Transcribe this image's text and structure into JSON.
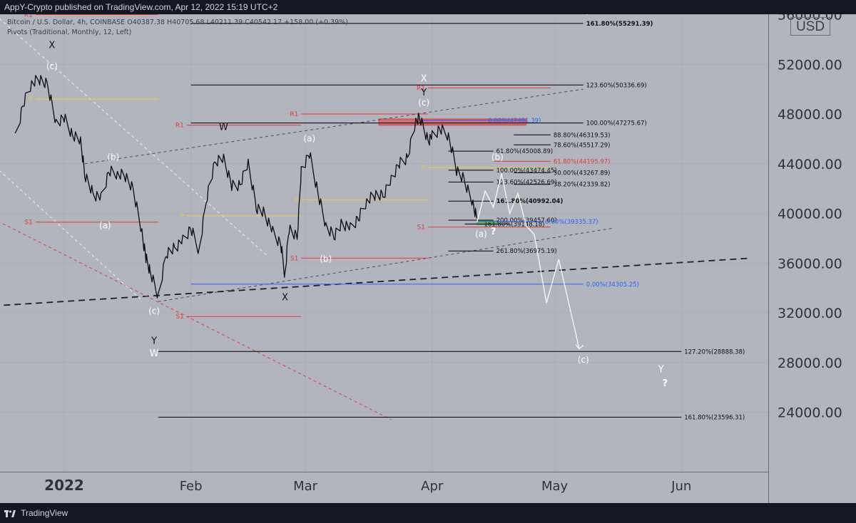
{
  "header": {
    "publish_text": "AppY-Crypto published on TradingView.com, Apr 12, 2022 15:19 UTC+2"
  },
  "legend": {
    "line1": "Bitcoin / U.S. Dollar, 4h, COINBASE  O40387.38  H40705.68  L40211.39  C40542.17  +158.00 (+0.39%)",
    "line2": "Pivots (Traditional, Monthly, 12, Left)"
  },
  "currency": "USD",
  "footer": {
    "brand": "TradingView"
  },
  "chart_data": {
    "type": "line",
    "symbol": "Bitcoin / U.S. Dollar, 4h, COINBASE",
    "ylim": [
      21000,
      60000
    ],
    "y_ticks": [
      {
        "value": 56000,
        "label": "56000.00"
      },
      {
        "value": 52000,
        "label": "52000.00"
      },
      {
        "value": 48000,
        "label": "48000.00"
      },
      {
        "value": 44000,
        "label": "44000.00"
      },
      {
        "value": 40000,
        "label": "40000.00"
      },
      {
        "value": 36000,
        "label": "36000.00"
      },
      {
        "value": 32000,
        "label": "32000.00"
      },
      {
        "value": 28000,
        "label": "28000.00"
      },
      {
        "value": 24000,
        "label": "24000.00"
      }
    ],
    "x_ticks": [
      {
        "date": "2022-01-01",
        "label": "2022",
        "bold": true
      },
      {
        "date": "2022-02-01",
        "label": "Feb"
      },
      {
        "date": "2022-03-01",
        "label": "Mar"
      },
      {
        "date": "2022-04-01",
        "label": "Apr"
      },
      {
        "date": "2022-05-01",
        "label": "May"
      },
      {
        "date": "2022-06-01",
        "label": "Jun"
      }
    ],
    "price_path": [
      [
        "2021-12-20",
        46000
      ],
      [
        "2021-12-22",
        48800
      ],
      [
        "2021-12-24",
        50500
      ],
      [
        "2021-12-26",
        50800
      ],
      [
        "2021-12-28",
        50300
      ],
      [
        "2021-12-30",
        47300
      ],
      [
        "2022-01-01",
        47700
      ],
      [
        "2022-01-03",
        46300
      ],
      [
        "2022-01-05",
        45800
      ],
      [
        "2022-01-06",
        43200
      ],
      [
        "2022-01-08",
        41600
      ],
      [
        "2022-01-10",
        41200
      ],
      [
        "2022-01-12",
        43400
      ],
      [
        "2022-01-14",
        43200
      ],
      [
        "2022-01-16",
        43000
      ],
      [
        "2022-01-18",
        41800
      ],
      [
        "2022-01-20",
        38500
      ],
      [
        "2022-01-21",
        36400
      ],
      [
        "2022-01-22",
        35400
      ],
      [
        "2022-01-24",
        33200
      ],
      [
        "2022-01-26",
        36800
      ],
      [
        "2022-01-28",
        37200
      ],
      [
        "2022-01-30",
        37800
      ],
      [
        "2022-02-01",
        38800
      ],
      [
        "2022-02-03",
        37000
      ],
      [
        "2022-02-05",
        41500
      ],
      [
        "2022-02-07",
        44200
      ],
      [
        "2022-02-09",
        44500
      ],
      [
        "2022-02-11",
        42200
      ],
      [
        "2022-02-13",
        42300
      ],
      [
        "2022-02-15",
        44000
      ],
      [
        "2022-02-17",
        40500
      ],
      [
        "2022-02-19",
        40000
      ],
      [
        "2022-02-21",
        38500
      ],
      [
        "2022-02-23",
        37500
      ],
      [
        "2022-02-24",
        35000
      ],
      [
        "2022-02-25",
        38800
      ],
      [
        "2022-02-27",
        38000
      ],
      [
        "2022-02-28",
        43500
      ],
      [
        "2022-03-02",
        44800
      ],
      [
        "2022-03-04",
        41800
      ],
      [
        "2022-03-06",
        38900
      ],
      [
        "2022-03-08",
        38200
      ],
      [
        "2022-03-10",
        39200
      ],
      [
        "2022-03-12",
        38800
      ],
      [
        "2022-03-14",
        39600
      ],
      [
        "2022-03-16",
        41000
      ],
      [
        "2022-03-18",
        41500
      ],
      [
        "2022-03-20",
        41400
      ],
      [
        "2022-03-22",
        42800
      ],
      [
        "2022-03-24",
        44000
      ],
      [
        "2022-03-26",
        44500
      ],
      [
        "2022-03-28",
        47300
      ],
      [
        "2022-03-29",
        47800
      ],
      [
        "2022-03-31",
        45800
      ],
      [
        "2022-04-01",
        46200
      ],
      [
        "2022-04-03",
        46800
      ],
      [
        "2022-04-05",
        46300
      ],
      [
        "2022-04-07",
        43500
      ],
      [
        "2022-04-09",
        42600
      ],
      [
        "2022-04-11",
        40800
      ],
      [
        "2022-04-12",
        39600
      ]
    ],
    "projection_path": [
      [
        "2022-04-12",
        39300
      ],
      [
        "2022-04-14",
        41800
      ],
      [
        "2022-04-16",
        40500
      ],
      [
        "2022-04-18",
        43200
      ],
      [
        "2022-04-20",
        40000
      ],
      [
        "2022-04-22",
        41600
      ],
      [
        "2022-04-24",
        39000
      ],
      [
        "2022-04-26",
        38300
      ],
      [
        "2022-04-29",
        32800
      ],
      [
        "2022-05-02",
        36300
      ],
      [
        "2022-05-07",
        29100
      ]
    ],
    "fib_levels": [
      {
        "label": "161.80%(55291.39)",
        "value": 55291.39,
        "x1": "2022-02-01",
        "x2": "2022-05-08",
        "color": "#000000",
        "label_date": "2022-05-08",
        "bold": true
      },
      {
        "label": "123.60%(50336.69)",
        "value": 50336.69,
        "x1": "2022-02-01",
        "x2": "2022-05-08",
        "color": "#000000",
        "label_date": "2022-05-08"
      },
      {
        "label": "100.00%(47275.67)",
        "value": 47275.67,
        "x1": "2022-02-01",
        "x2": "2022-05-08",
        "color": "#000000",
        "label_date": "2022-05-08"
      },
      {
        "label": "88.80%(46319.53)",
        "value": 46319.53,
        "x1": "2022-04-21",
        "x2": "2022-04-30",
        "color": "#000000",
        "label_date": "2022-04-30"
      },
      {
        "label": "78.60%(45517.29)",
        "value": 45517.29,
        "x1": "2022-04-21",
        "x2": "2022-04-30",
        "color": "#000000",
        "label_date": "2022-04-30"
      },
      {
        "label": "61.80%(45008.89)",
        "value": 45008.89,
        "x1": "2022-04-05",
        "x2": "2022-04-16",
        "color": "#000000",
        "label_date": "2022-04-16"
      },
      {
        "label": "100.00%(43474.45)",
        "value": 43474.45,
        "x1": "2022-04-05",
        "x2": "2022-04-16",
        "color": "#000000",
        "label_date": "2022-04-16"
      },
      {
        "label": "50.00%(43267.89)",
        "value": 43267.89,
        "x1": "2022-04-21",
        "x2": "2022-04-30",
        "color": "#000000",
        "label_date": "2022-04-30"
      },
      {
        "label": "38.20%(42339.82)",
        "value": 42339.82,
        "x1": "2022-04-21",
        "x2": "2022-04-30",
        "color": "#000000",
        "label_date": "2022-04-30"
      },
      {
        "label": "123.60%(42526.69)",
        "value": 42526.69,
        "x1": "2022-04-05",
        "x2": "2022-04-16",
        "color": "#000000",
        "label_date": "2022-04-16"
      },
      {
        "label": "161.80%(40992.04)",
        "value": 40992.04,
        "x1": "2022-04-05",
        "x2": "2022-04-16",
        "color": "#000000",
        "label_date": "2022-04-16",
        "bold": true
      },
      {
        "label": "200.00%(39457.60)",
        "value": 39457.6,
        "x1": "2022-04-05",
        "x2": "2022-04-16",
        "color": "#000000",
        "label_date": "2022-04-16"
      },
      {
        "label": "161.80%(39148.18)",
        "value": 39148.18,
        "x1": "2022-04-09",
        "x2": "2022-04-20",
        "color": "#000000",
        "label_date": "2022-04-13"
      },
      {
        "label": "261.80%(36975.19)",
        "value": 36975.19,
        "x1": "2022-04-05",
        "x2": "2022-04-16",
        "color": "#000000",
        "label_date": "2022-04-16"
      },
      {
        "label": "127.20%(28888.38)",
        "value": 28888.38,
        "x1": "2022-01-24",
        "x2": "2022-06-01",
        "color": "#000000",
        "label_date": "2022-06-01"
      },
      {
        "label": "161.80%(23596.31)",
        "value": 23596.31,
        "x1": "2022-01-24",
        "x2": "2022-06-01",
        "color": "#000000",
        "label_date": "2022-06-01"
      },
      {
        "label": "0.00%(47491.39)",
        "value": 47491.39,
        "x1": "2022-03-29",
        "x2": "2022-04-24",
        "color": "#2962ff",
        "label_date": "2022-04-14"
      },
      {
        "label": "61.80%(44195.97)",
        "value": 44195.97,
        "x1": "2022-04-16",
        "x2": "2022-04-30",
        "color": "#e53935",
        "label_date": "2022-04-30"
      },
      {
        "label": "0.00%(39335.37)",
        "value": 39335.37,
        "x1": "2022-04-12",
        "x2": "2022-04-28",
        "color": "#2962ff",
        "label_date": "2022-04-28"
      },
      {
        "label": "0.00%(34305.25)",
        "value": 34305.25,
        "x1": "2022-02-01",
        "x2": "2022-05-08",
        "color": "#2962ff",
        "label_date": "2022-05-08"
      }
    ],
    "pivots": [
      {
        "label": "R1",
        "value": 56000,
        "x1": "2021-12-25",
        "x2": "2022-01-24",
        "color": "#e53935"
      },
      {
        "label": "P",
        "value": 49200,
        "x1": "2021-12-25",
        "x2": "2022-01-24",
        "color": "#f2c94c"
      },
      {
        "label": "S1",
        "value": 39300,
        "x1": "2021-12-25",
        "x2": "2022-01-24",
        "color": "#e53935"
      },
      {
        "label": "R1",
        "value": 47100,
        "x1": "2022-01-31",
        "x2": "2022-02-28",
        "color": "#e53935"
      },
      {
        "label": "P",
        "value": 39800,
        "x1": "2022-01-31",
        "x2": "2022-02-28",
        "color": "#f2c94c"
      },
      {
        "label": "S1",
        "value": 31700,
        "x1": "2022-01-31",
        "x2": "2022-02-28",
        "color": "#e53935"
      },
      {
        "label": "R1",
        "value": 48000,
        "x1": "2022-02-28",
        "x2": "2022-03-31",
        "color": "#e53935"
      },
      {
        "label": "P",
        "value": 41100,
        "x1": "2022-02-28",
        "x2": "2022-03-31",
        "color": "#f2c94c"
      },
      {
        "label": "S1",
        "value": 36400,
        "x1": "2022-02-28",
        "x2": "2022-03-31",
        "color": "#e53935"
      },
      {
        "label": "R1",
        "value": 50100,
        "x1": "2022-03-31",
        "x2": "2022-04-30",
        "color": "#e53935"
      },
      {
        "label": "P",
        "value": 43700,
        "x1": "2022-03-31",
        "x2": "2022-04-30",
        "color": "#f2c94c"
      },
      {
        "label": "S1",
        "value": 38900,
        "x1": "2022-03-31",
        "x2": "2022-04-30",
        "color": "#e53935"
      }
    ],
    "trendlines": [
      {
        "name": "upper-channel",
        "x1": "2022-01-06",
        "y1": 44000,
        "x2": "2022-05-08",
        "y2": 50000,
        "color": "#4a4d57",
        "dash": "4,4",
        "width": 1
      },
      {
        "name": "lower-channel",
        "x1": "2022-01-24",
        "y1": 32900,
        "x2": "2022-05-15",
        "y2": 38800,
        "color": "#4a4d57",
        "dash": "4,4",
        "width": 1
      },
      {
        "name": "long-support",
        "x1": "2021-12-12",
        "y1": 32500,
        "x2": "2022-06-18",
        "y2": 36400,
        "color": "#1e2029",
        "dash": "9,6",
        "width": 1.8
      },
      {
        "name": "red-down",
        "x1": "2021-12-12",
        "y1": 40000,
        "x2": "2022-03-22",
        "y2": 23400,
        "color": "#e53935",
        "dash": "4,4",
        "width": 1
      },
      {
        "name": "white-down-1",
        "x1": "2021-12-13",
        "y1": 56600,
        "x2": "2022-02-20",
        "y2": 36500,
        "color": "#f0f0f0",
        "dash": "4,4",
        "width": 1
      },
      {
        "name": "white-down-2",
        "x1": "2021-12-13",
        "y1": 44400,
        "x2": "2022-01-20",
        "y2": 33000,
        "color": "#f0f0f0",
        "dash": "4,4",
        "width": 1
      }
    ],
    "zones": [
      {
        "name": "red-resistance-zone",
        "x1": "2022-03-19",
        "x2": "2022-04-24",
        "y1": 47100,
        "y2": 47600,
        "color": "#e53935"
      },
      {
        "name": "green-support-zone",
        "x1": "2022-04-12",
        "x2": "2022-04-17",
        "y1": 39100,
        "y2": 39400,
        "color": "#4caf50"
      }
    ],
    "wave_labels": [
      {
        "text": "X",
        "date": "2021-12-29",
        "value": 53300,
        "color": "#111111"
      },
      {
        "text": "(c)",
        "date": "2021-12-29",
        "value": 51600,
        "color": "#ffffff"
      },
      {
        "text": "(b)",
        "date": "2021-12-14",
        "value": 43200,
        "color": "#ffffff"
      },
      {
        "text": "(b)",
        "date": "2022-01-13",
        "value": 44300,
        "color": "#ffffff"
      },
      {
        "text": "(a)",
        "date": "2022-01-11",
        "value": 38800,
        "color": "#ffffff"
      },
      {
        "text": "(c)",
        "date": "2022-01-23",
        "value": 31900,
        "color": "#ffffff"
      },
      {
        "text": "Y",
        "date": "2022-01-23",
        "value": 29500,
        "color": "#111111"
      },
      {
        "text": "W",
        "date": "2022-01-23",
        "value": 28500,
        "color": "#ffffff"
      },
      {
        "text": "W",
        "date": "2022-02-09",
        "value": 46700,
        "color": "#111111"
      },
      {
        "text": "X",
        "date": "2022-02-24",
        "value": 33000,
        "color": "#111111"
      },
      {
        "text": "(a)",
        "date": "2022-03-02",
        "value": 45800,
        "color": "#ffffff"
      },
      {
        "text": "(b)",
        "date": "2022-03-06",
        "value": 36100,
        "color": "#ffffff"
      },
      {
        "text": "X",
        "date": "2022-03-30",
        "value": 50600,
        "color": "#ffffff"
      },
      {
        "text": "Y",
        "date": "2022-03-30",
        "value": 49500,
        "color": "#111111"
      },
      {
        "text": "(c)",
        "date": "2022-03-30",
        "value": 48700,
        "color": "#ffffff"
      },
      {
        "text": "(b)",
        "date": "2022-04-17",
        "value": 44300,
        "color": "#ffffff"
      },
      {
        "text": "(a)",
        "date": "2022-04-13",
        "value": 38100,
        "color": "#ffffff"
      },
      {
        "text": "?",
        "date": "2022-04-16",
        "value": 38300,
        "color": "#ffffff"
      },
      {
        "text": "?",
        "date": "2022-05-09",
        "value": 56000,
        "color": "#ffffff"
      },
      {
        "text": "(c)",
        "date": "2022-05-08",
        "value": 28000,
        "color": "#ffffff"
      },
      {
        "text": "Y",
        "date": "2022-05-27",
        "value": 27200,
        "color": "#ffffff"
      },
      {
        "text": "?",
        "date": "2022-05-28",
        "value": 26100,
        "color": "#ffffff"
      }
    ]
  }
}
